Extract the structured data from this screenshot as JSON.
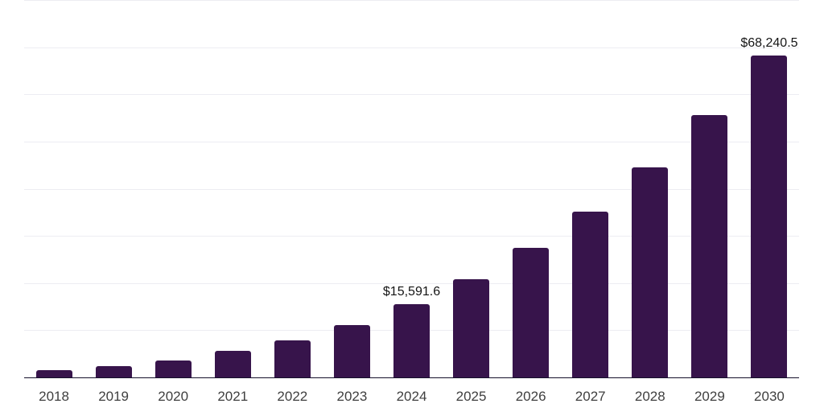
{
  "chart_data": {
    "type": "bar",
    "title": "",
    "xlabel": "",
    "ylabel": "",
    "legend": "none",
    "grid": "horizontal",
    "y_axis_tick_labels_visible": false,
    "categories": [
      "2018",
      "2019",
      "2020",
      "2021",
      "2022",
      "2023",
      "2024",
      "2025",
      "2026",
      "2027",
      "2028",
      "2029",
      "2030"
    ],
    "values": [
      1550,
      2470,
      3500,
      5630,
      7850,
      11090,
      15591.6,
      20810,
      27470,
      35140,
      44530,
      55620,
      68240.5
    ],
    "ylim": [
      0,
      80000
    ],
    "gridline_step": 10000,
    "data_labels": [
      {
        "index": 6,
        "category": "2024",
        "text": "$15,591.6"
      },
      {
        "index": 12,
        "category": "2030",
        "text": "$68,240.5"
      }
    ],
    "colors": {
      "bar": "#37144b",
      "axis_line": "#16112b",
      "gridline": "#ededf2",
      "tick_label": "#3f3f3f",
      "data_label": "#151515",
      "background": "#ffffff"
    }
  }
}
